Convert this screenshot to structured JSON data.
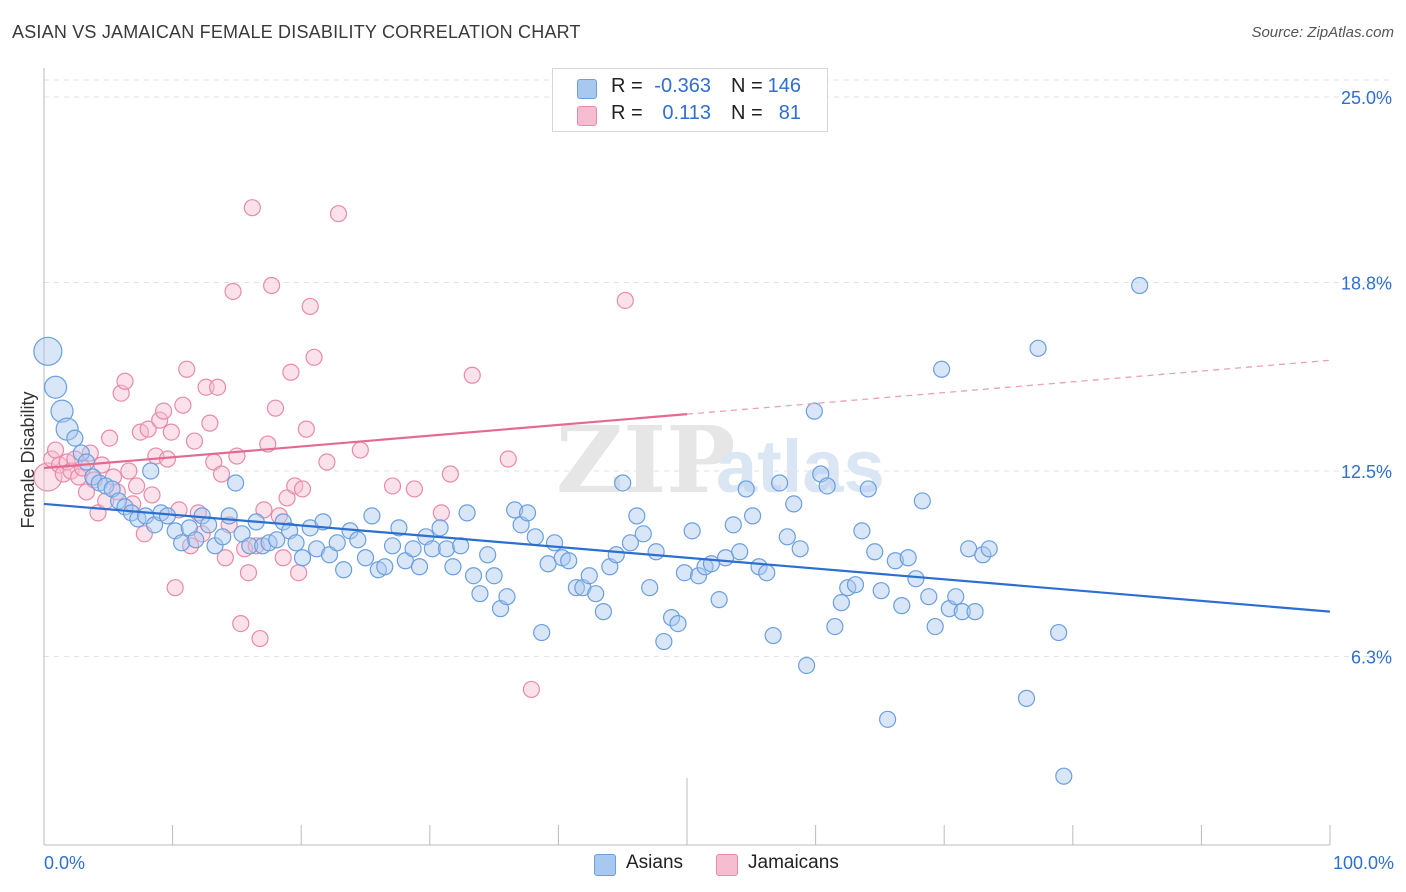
{
  "title": "ASIAN VS JAMAICAN FEMALE DISABILITY CORRELATION CHART",
  "source": "Source: ZipAtlas.com",
  "watermark": {
    "zip": "ZIP",
    "atlas": "atlas"
  },
  "legend": {
    "rows": [
      {
        "r_label": "R =",
        "r_value": "-0.363",
        "n_label": "N =",
        "n_value": "146",
        "color": "#a9c8f0",
        "border": "#6a9fe0"
      },
      {
        "r_label": "R =",
        "r_value": "0.113",
        "n_label": "N =",
        "n_value": "81",
        "color": "#f6bcd0",
        "border": "#e98aab"
      }
    ]
  },
  "bottom_legend": [
    {
      "label": "Asians",
      "color": "#a9c8f0",
      "border": "#6a9fe0"
    },
    {
      "label": "Jamaicans",
      "color": "#f6bcd0",
      "border": "#e98aab"
    }
  ],
  "chart_data": {
    "type": "scatter",
    "ylabel": "Female Disability",
    "xlabel": "",
    "xlim": [
      0,
      100
    ],
    "ylim": [
      0,
      25
    ],
    "x_tick_labels": {
      "left": "0.0%",
      "right": "100.0%"
    },
    "y_ticks": [
      {
        "value": 6.3,
        "label": "6.3%"
      },
      {
        "value": 12.5,
        "label": "12.5%"
      },
      {
        "value": 18.8,
        "label": "18.8%"
      },
      {
        "value": 25.0,
        "label": "25.0%"
      }
    ],
    "grid": "horizontal dashed",
    "series": [
      {
        "name": "Asians",
        "color": "#6a9fe0",
        "fill": "#a9c8f0",
        "trend": {
          "x0": 0,
          "y0": 11.4,
          "x1": 100,
          "y1": 7.8,
          "style": "solid"
        },
        "points": [
          [
            0.3,
            16.5
          ],
          [
            0.9,
            15.3
          ],
          [
            1.4,
            14.5
          ],
          [
            1.8,
            13.9
          ],
          [
            2.4,
            13.6
          ],
          [
            2.9,
            13.1
          ],
          [
            3.3,
            12.8
          ],
          [
            3.8,
            12.3
          ],
          [
            4.3,
            12.1
          ],
          [
            4.8,
            12.0
          ],
          [
            5.3,
            11.9
          ],
          [
            5.8,
            11.5
          ],
          [
            6.3,
            11.3
          ],
          [
            6.8,
            11.1
          ],
          [
            7.3,
            10.9
          ],
          [
            7.9,
            11.0
          ],
          [
            8.3,
            12.5
          ],
          [
            8.6,
            10.7
          ],
          [
            9.1,
            11.1
          ],
          [
            9.6,
            11.0
          ],
          [
            10.2,
            10.5
          ],
          [
            10.7,
            10.1
          ],
          [
            11.3,
            10.6
          ],
          [
            11.8,
            10.2
          ],
          [
            12.3,
            11.0
          ],
          [
            12.8,
            10.7
          ],
          [
            13.3,
            10.0
          ],
          [
            13.9,
            10.3
          ],
          [
            14.4,
            11.0
          ],
          [
            14.9,
            12.1
          ],
          [
            15.4,
            10.4
          ],
          [
            16.0,
            10.0
          ],
          [
            16.5,
            10.8
          ],
          [
            17.0,
            10.0
          ],
          [
            17.5,
            10.1
          ],
          [
            18.1,
            10.2
          ],
          [
            18.6,
            10.8
          ],
          [
            19.1,
            10.5
          ],
          [
            19.6,
            10.1
          ],
          [
            20.1,
            9.6
          ],
          [
            20.7,
            10.6
          ],
          [
            21.2,
            9.9
          ],
          [
            21.7,
            10.8
          ],
          [
            22.2,
            9.7
          ],
          [
            22.8,
            10.1
          ],
          [
            23.3,
            9.2
          ],
          [
            23.8,
            10.5
          ],
          [
            24.4,
            10.2
          ],
          [
            25.0,
            9.6
          ],
          [
            25.5,
            11.0
          ],
          [
            26.0,
            9.2
          ],
          [
            26.5,
            9.3
          ],
          [
            27.1,
            10.0
          ],
          [
            27.6,
            10.6
          ],
          [
            28.1,
            9.5
          ],
          [
            28.7,
            9.9
          ],
          [
            29.2,
            9.3
          ],
          [
            29.7,
            10.3
          ],
          [
            30.2,
            9.9
          ],
          [
            30.8,
            10.6
          ],
          [
            31.3,
            9.9
          ],
          [
            31.8,
            9.3
          ],
          [
            32.4,
            10.0
          ],
          [
            32.9,
            11.1
          ],
          [
            33.4,
            9.0
          ],
          [
            33.9,
            8.4
          ],
          [
            34.5,
            9.7
          ],
          [
            35.0,
            9.0
          ],
          [
            35.5,
            7.9
          ],
          [
            36.0,
            8.3
          ],
          [
            36.6,
            11.2
          ],
          [
            37.1,
            10.7
          ],
          [
            37.6,
            11.1
          ],
          [
            38.2,
            10.3
          ],
          [
            38.7,
            7.1
          ],
          [
            39.2,
            9.4
          ],
          [
            39.7,
            10.1
          ],
          [
            40.3,
            9.6
          ],
          [
            40.8,
            9.5
          ],
          [
            41.4,
            8.6
          ],
          [
            41.9,
            8.6
          ],
          [
            42.4,
            9.0
          ],
          [
            42.9,
            8.4
          ],
          [
            43.5,
            7.8
          ],
          [
            44.0,
            9.3
          ],
          [
            44.5,
            9.7
          ],
          [
            45.0,
            12.1
          ],
          [
            45.6,
            10.1
          ],
          [
            46.1,
            11.0
          ],
          [
            46.6,
            10.4
          ],
          [
            47.1,
            8.6
          ],
          [
            47.6,
            9.8
          ],
          [
            48.2,
            6.8
          ],
          [
            48.8,
            7.6
          ],
          [
            49.3,
            7.4
          ],
          [
            49.8,
            9.1
          ],
          [
            50.4,
            10.5
          ],
          [
            50.9,
            9.0
          ],
          [
            51.4,
            9.3
          ],
          [
            51.9,
            9.4
          ],
          [
            52.5,
            8.2
          ],
          [
            53.0,
            9.6
          ],
          [
            53.6,
            10.7
          ],
          [
            54.1,
            9.8
          ],
          [
            54.6,
            11.9
          ],
          [
            55.1,
            11.0
          ],
          [
            55.6,
            9.3
          ],
          [
            56.2,
            9.1
          ],
          [
            56.7,
            7.0
          ],
          [
            57.2,
            12.1
          ],
          [
            57.8,
            10.3
          ],
          [
            58.3,
            11.4
          ],
          [
            58.8,
            9.9
          ],
          [
            59.3,
            6.0
          ],
          [
            59.9,
            14.5
          ],
          [
            60.4,
            12.4
          ],
          [
            60.9,
            12.0
          ],
          [
            61.5,
            7.3
          ],
          [
            62.0,
            8.1
          ],
          [
            62.5,
            8.6
          ],
          [
            63.1,
            8.7
          ],
          [
            63.6,
            10.5
          ],
          [
            64.1,
            11.9
          ],
          [
            64.6,
            9.8
          ],
          [
            65.1,
            8.5
          ],
          [
            65.6,
            4.2
          ],
          [
            66.2,
            9.5
          ],
          [
            66.7,
            8.0
          ],
          [
            67.2,
            9.6
          ],
          [
            67.8,
            8.9
          ],
          [
            68.3,
            11.5
          ],
          [
            68.8,
            8.3
          ],
          [
            69.3,
            7.3
          ],
          [
            69.8,
            15.9
          ],
          [
            70.4,
            7.9
          ],
          [
            70.9,
            8.3
          ],
          [
            71.4,
            7.8
          ],
          [
            71.9,
            9.9
          ],
          [
            72.4,
            7.8
          ],
          [
            73.0,
            9.7
          ],
          [
            73.5,
            9.9
          ],
          [
            76.4,
            4.9
          ],
          [
            77.3,
            16.6
          ],
          [
            78.9,
            7.1
          ],
          [
            79.3,
            2.3
          ],
          [
            85.2,
            18.7
          ]
        ]
      },
      {
        "name": "Jamaicans",
        "color": "#e98aab",
        "fill": "#f6bcd0",
        "trend": {
          "x0": 0,
          "y0": 12.6,
          "x1": 50,
          "y1": 14.4,
          "x2": 100,
          "y2": 16.2,
          "style": "solid-then-dashed"
        },
        "points": [
          [
            0.3,
            12.3
          ],
          [
            0.6,
            12.9
          ],
          [
            0.9,
            13.2
          ],
          [
            1.2,
            12.7
          ],
          [
            1.5,
            12.4
          ],
          [
            1.8,
            12.8
          ],
          [
            2.1,
            12.5
          ],
          [
            2.4,
            12.9
          ],
          [
            2.7,
            12.3
          ],
          [
            3.0,
            12.6
          ],
          [
            3.3,
            11.8
          ],
          [
            3.6,
            13.1
          ],
          [
            3.9,
            12.2
          ],
          [
            4.2,
            11.1
          ],
          [
            4.5,
            12.7
          ],
          [
            4.8,
            11.5
          ],
          [
            5.1,
            13.6
          ],
          [
            5.4,
            12.3
          ],
          [
            5.7,
            11.8
          ],
          [
            6.0,
            15.1
          ],
          [
            6.3,
            15.5
          ],
          [
            6.6,
            12.5
          ],
          [
            6.9,
            11.4
          ],
          [
            7.2,
            12.0
          ],
          [
            7.5,
            13.8
          ],
          [
            7.8,
            10.4
          ],
          [
            8.1,
            13.9
          ],
          [
            8.4,
            11.7
          ],
          [
            8.7,
            13.0
          ],
          [
            9.0,
            14.2
          ],
          [
            9.3,
            14.5
          ],
          [
            9.6,
            12.9
          ],
          [
            9.9,
            13.8
          ],
          [
            10.2,
            8.6
          ],
          [
            10.5,
            11.2
          ],
          [
            10.8,
            14.7
          ],
          [
            11.1,
            15.9
          ],
          [
            11.4,
            10.0
          ],
          [
            11.7,
            13.5
          ],
          [
            12.0,
            11.1
          ],
          [
            12.3,
            10.4
          ],
          [
            12.6,
            15.3
          ],
          [
            12.9,
            14.1
          ],
          [
            13.2,
            12.8
          ],
          [
            13.5,
            15.3
          ],
          [
            13.8,
            12.4
          ],
          [
            14.1,
            9.6
          ],
          [
            14.4,
            10.7
          ],
          [
            14.7,
            18.5
          ],
          [
            15.0,
            13.0
          ],
          [
            15.3,
            7.4
          ],
          [
            15.6,
            9.9
          ],
          [
            15.9,
            9.1
          ],
          [
            16.2,
            21.3
          ],
          [
            16.5,
            10.0
          ],
          [
            16.8,
            6.9
          ],
          [
            17.1,
            11.2
          ],
          [
            17.4,
            13.4
          ],
          [
            17.7,
            18.7
          ],
          [
            18.0,
            14.6
          ],
          [
            18.3,
            11.0
          ],
          [
            18.6,
            9.6
          ],
          [
            18.9,
            11.6
          ],
          [
            19.2,
            15.8
          ],
          [
            19.5,
            12.0
          ],
          [
            19.8,
            9.1
          ],
          [
            20.1,
            11.9
          ],
          [
            20.4,
            13.9
          ],
          [
            20.7,
            18.0
          ],
          [
            21.0,
            16.3
          ],
          [
            22.0,
            12.8
          ],
          [
            22.9,
            21.1
          ],
          [
            24.6,
            13.2
          ],
          [
            27.1,
            12.0
          ],
          [
            28.8,
            11.9
          ],
          [
            30.9,
            11.1
          ],
          [
            31.6,
            12.4
          ],
          [
            33.3,
            15.7
          ],
          [
            36.1,
            12.9
          ],
          [
            37.9,
            5.2
          ],
          [
            45.2,
            18.2
          ]
        ]
      }
    ]
  }
}
